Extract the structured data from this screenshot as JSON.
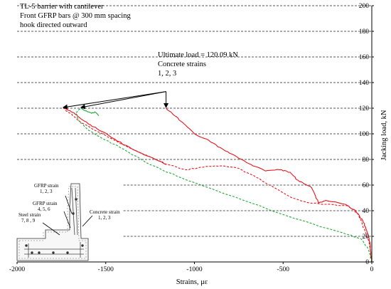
{
  "chart_data": {
    "type": "line",
    "title_lines": [
      "TL-5 barrier with cantilever",
      "Front GFRP bars @ 300 mm spacing",
      "hook directed outward"
    ],
    "xlabel": "Strains, με",
    "ylabel": "Jacking load, kN",
    "xlim": [
      -2000,
      0
    ],
    "ylim": [
      0,
      200
    ],
    "x_ticks": [
      "-2000",
      "-1500",
      "-1000",
      "-500",
      "0"
    ],
    "x_tick_values": [
      -2000,
      -1500,
      -1000,
      -500,
      0
    ],
    "y_ticks": [
      "0",
      "20",
      "40",
      "60",
      "80",
      "100",
      "120",
      "140",
      "160",
      "180",
      "200"
    ],
    "y_tick_values": [
      0,
      20,
      40,
      60,
      80,
      100,
      120,
      140,
      160,
      180,
      200
    ],
    "grid": "dashed horizontal",
    "ultimate_annotation": [
      "Ultimate load = 120.09 kN",
      "Concrete strains",
      "1, 2, 3"
    ],
    "ultimate_load": 120.09,
    "arrow_targets": [
      {
        "x": -1740,
        "y": 120
      },
      {
        "x": -1640,
        "y": 120
      },
      {
        "x": -1160,
        "y": 120
      }
    ],
    "series": [
      {
        "color": "#e8141c",
        "dash": false,
        "points": [
          [
            0,
            0
          ],
          [
            -10,
            15
          ],
          [
            -30,
            25
          ],
          [
            -50,
            32
          ],
          [
            -90,
            40
          ],
          [
            -150,
            45
          ],
          [
            -260,
            48
          ],
          [
            -300,
            46
          ],
          [
            -340,
            58
          ],
          [
            -390,
            62
          ],
          [
            -420,
            64
          ],
          [
            -460,
            70
          ],
          [
            -520,
            72
          ],
          [
            -600,
            71
          ],
          [
            -680,
            76
          ],
          [
            -760,
            82
          ],
          [
            -840,
            88
          ],
          [
            -920,
            95
          ],
          [
            -1000,
            100
          ],
          [
            -1060,
            108
          ],
          [
            -1110,
            114
          ],
          [
            -1160,
            120
          ]
        ]
      },
      {
        "color": "#e8141c",
        "dash": true,
        "points": [
          [
            0,
            0
          ],
          [
            -15,
            15
          ],
          [
            -40,
            25
          ],
          [
            -80,
            38
          ],
          [
            -140,
            44
          ],
          [
            -250,
            45
          ],
          [
            -350,
            46
          ],
          [
            -450,
            50
          ],
          [
            -550,
            58
          ],
          [
            -650,
            66
          ],
          [
            -750,
            73
          ],
          [
            -850,
            75
          ],
          [
            -950,
            74
          ],
          [
            -1050,
            72
          ],
          [
            -1150,
            76
          ],
          [
            -1250,
            82
          ],
          [
            -1350,
            88
          ],
          [
            -1450,
            95
          ],
          [
            -1550,
            102
          ],
          [
            -1650,
            110
          ],
          [
            -1700,
            116
          ],
          [
            -1740,
            120
          ]
        ]
      },
      {
        "color": "#e8141c",
        "dash": false,
        "points": [
          [
            -1160,
            76
          ],
          [
            -1250,
            82
          ],
          [
            -1350,
            88
          ],
          [
            -1450,
            96
          ],
          [
            -1550,
            104
          ],
          [
            -1600,
            108
          ],
          [
            -1660,
            114
          ],
          [
            -1700,
            118
          ],
          [
            -1740,
            120
          ]
        ]
      },
      {
        "color": "#1faa3a",
        "dash": true,
        "points": [
          [
            0,
            0
          ],
          [
            -20,
            10
          ],
          [
            -60,
            18
          ],
          [
            -150,
            22
          ],
          [
            -300,
            28
          ],
          [
            -500,
            37
          ],
          [
            -700,
            47
          ],
          [
            -900,
            57
          ],
          [
            -1100,
            67
          ],
          [
            -1250,
            76
          ],
          [
            -1400,
            88
          ],
          [
            -1500,
            95
          ],
          [
            -1600,
            103
          ],
          [
            -1650,
            110
          ],
          [
            -1670,
            116
          ],
          [
            -1640,
            120
          ]
        ]
      },
      {
        "color": "#1faa3a",
        "dash": false,
        "points": [
          [
            -1640,
            120
          ],
          [
            -1610,
            118
          ],
          [
            -1580,
            116
          ],
          [
            -1560,
            117
          ],
          [
            -1540,
            114
          ]
        ]
      }
    ],
    "inset_labels": {
      "gfrp_strain_123": [
        "GFRP strain",
        "1, 2, 3"
      ],
      "gfrp_strain_456": [
        "GFRP strain",
        "4, 5, 6"
      ],
      "steel_strain": [
        "Steel strain",
        "7, 8 , 9"
      ],
      "concrete_strain": [
        "Concrete strain",
        "1, 2, 3"
      ]
    }
  }
}
